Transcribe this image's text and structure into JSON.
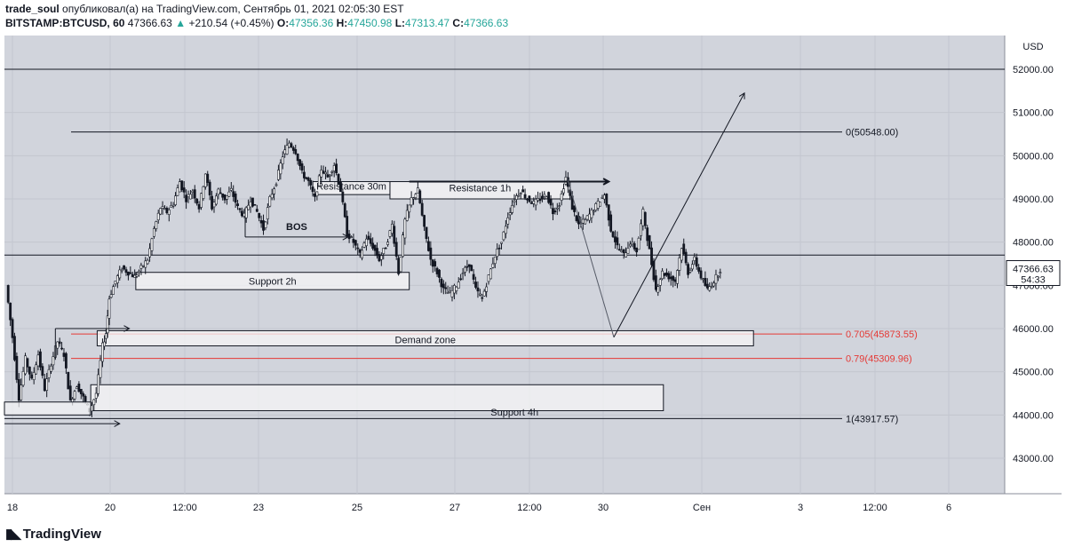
{
  "header": {
    "author": "trade_soul",
    "published_text": "опубликовал(а) на TradingView.com, Сентябрь 01, 2021 02:05:30 EST",
    "symbol": "BITSTAMP:BTCUSD, 60",
    "last": "47366.63",
    "change_arrow": "▲",
    "change": "+210.54 (+0.45%)",
    "o_label": "O:",
    "o": "47356.36",
    "h_label": "H:",
    "h": "47450.98",
    "l_label": "L:",
    "l": "47313.47",
    "c_label": "C:",
    "c": "47366.63"
  },
  "footer": {
    "logo_text": "TradingView"
  },
  "chart_data": {
    "type": "candlestick",
    "currency": "USD",
    "ylim": [
      42300,
      53200
    ],
    "y_ticks": [
      43000,
      44000,
      45000,
      46000,
      47000,
      48000,
      49000,
      50000,
      51000,
      52000
    ],
    "y_tick_labels": [
      "43000.00",
      "44000.00",
      "45000.00",
      "46000.00",
      "47000.00",
      "48000.00",
      "49000.00",
      "50000.00",
      "51000.00",
      "52000.00"
    ],
    "x_ticks": [
      "18",
      "20",
      "12:00",
      "23",
      "25",
      "27",
      "12:00",
      "30",
      "Сен",
      "3",
      "12:00",
      "6"
    ],
    "last_price_label": "47366.63",
    "countdown": "54:33",
    "price_path": [
      [
        0,
        47000
      ],
      [
        2,
        45800
      ],
      [
        4,
        44400
      ],
      [
        6,
        45300
      ],
      [
        8,
        44800
      ],
      [
        10,
        45400
      ],
      [
        12,
        44600
      ],
      [
        14,
        45200
      ],
      [
        16,
        45700
      ],
      [
        18,
        45400
      ],
      [
        20,
        44300
      ],
      [
        22,
        44700
      ],
      [
        24,
        44400
      ],
      [
        26,
        44100
      ],
      [
        28,
        44500
      ],
      [
        30,
        45600
      ],
      [
        31,
        45900
      ],
      [
        32,
        46700
      ],
      [
        34,
        47100
      ],
      [
        36,
        47400
      ],
      [
        38,
        47300
      ],
      [
        40,
        47200
      ],
      [
        42,
        47400
      ],
      [
        44,
        47600
      ],
      [
        46,
        48300
      ],
      [
        48,
        48800
      ],
      [
        50,
        48700
      ],
      [
        52,
        48900
      ],
      [
        54,
        49400
      ],
      [
        56,
        49000
      ],
      [
        58,
        49200
      ],
      [
        60,
        48800
      ],
      [
        62,
        49600
      ],
      [
        64,
        48800
      ],
      [
        66,
        49200
      ],
      [
        68,
        49000
      ],
      [
        70,
        49200
      ],
      [
        72,
        48800
      ],
      [
        74,
        48600
      ],
      [
        76,
        49000
      ],
      [
        78,
        48700
      ],
      [
        80,
        48300
      ],
      [
        82,
        49000
      ],
      [
        84,
        49400
      ],
      [
        86,
        50000
      ],
      [
        88,
        50300
      ],
      [
        90,
        50100
      ],
      [
        92,
        49600
      ],
      [
        94,
        49400
      ],
      [
        96,
        49000
      ],
      [
        98,
        49700
      ],
      [
        100,
        49500
      ],
      [
        102,
        49800
      ],
      [
        104,
        49200
      ],
      [
        106,
        48200
      ],
      [
        108,
        48000
      ],
      [
        110,
        47700
      ],
      [
        112,
        48100
      ],
      [
        114,
        47900
      ],
      [
        116,
        47600
      ],
      [
        118,
        47900
      ],
      [
        120,
        48400
      ],
      [
        122,
        47300
      ],
      [
        124,
        48500
      ],
      [
        126,
        49000
      ],
      [
        128,
        49200
      ],
      [
        130,
        48300
      ],
      [
        132,
        47600
      ],
      [
        134,
        47300
      ],
      [
        136,
        46900
      ],
      [
        138,
        46800
      ],
      [
        140,
        47000
      ],
      [
        142,
        47300
      ],
      [
        144,
        47500
      ],
      [
        146,
        46900
      ],
      [
        148,
        46700
      ],
      [
        150,
        47200
      ],
      [
        152,
        47700
      ],
      [
        154,
        48000
      ],
      [
        156,
        48600
      ],
      [
        158,
        49000
      ],
      [
        160,
        49200
      ],
      [
        162,
        49000
      ],
      [
        164,
        48900
      ],
      [
        166,
        49000
      ],
      [
        168,
        49100
      ],
      [
        170,
        48700
      ],
      [
        172,
        48900
      ],
      [
        174,
        49500
      ],
      [
        176,
        48800
      ],
      [
        178,
        48400
      ],
      [
        180,
        48500
      ],
      [
        182,
        48700
      ],
      [
        184,
        48900
      ],
      [
        186,
        49100
      ],
      [
        188,
        48300
      ],
      [
        190,
        47900
      ],
      [
        192,
        47700
      ],
      [
        194,
        48000
      ],
      [
        196,
        47800
      ],
      [
        198,
        48700
      ],
      [
        200,
        47800
      ],
      [
        202,
        46900
      ],
      [
        204,
        47300
      ],
      [
        206,
        47200
      ],
      [
        208,
        47100
      ],
      [
        210,
        47900
      ],
      [
        212,
        47300
      ],
      [
        214,
        47600
      ],
      [
        216,
        47200
      ],
      [
        218,
        46900
      ],
      [
        220,
        47100
      ],
      [
        222,
        47366
      ]
    ],
    "price_path_note": "",
    "horizontal_levels": [
      52000,
      47700
    ],
    "fib_levels": [
      {
        "label": "0(50548.00)",
        "value": 50548,
        "color": "#131722"
      },
      {
        "label": "0.705(45873.55)",
        "value": 45873.55,
        "color": "#e53935"
      },
      {
        "label": "0.79(45309.96)",
        "value": 45309.96,
        "color": "#e53935"
      },
      {
        "label": "1(43917.57)",
        "value": 43917.57,
        "color": "#131722"
      }
    ],
    "zones": [
      {
        "label": "Resistance 30m",
        "x0": 95,
        "x1": 119,
        "y0": 49100,
        "y1": 49400
      },
      {
        "label": "Resistance 1h",
        "x0": 119,
        "x1": 175,
        "y0": 49000,
        "y1": 49400
      },
      {
        "label": "Support 2h",
        "x0": 40,
        "x1": 125,
        "y0": 46900,
        "y1": 47300
      },
      {
        "label": "Demand zone",
        "x0": 28,
        "x1": 232,
        "y0": 45600,
        "y1": 45950
      },
      {
        "label": "Support 4h",
        "x0": 26,
        "x1": 204,
        "y0": 44100,
        "y1": 44700
      }
    ],
    "annotations": [
      {
        "label": "BOS"
      }
    ],
    "colors": {
      "background": "#d1d4dc",
      "candle": "#131722",
      "fib_red": "#e53935"
    }
  }
}
